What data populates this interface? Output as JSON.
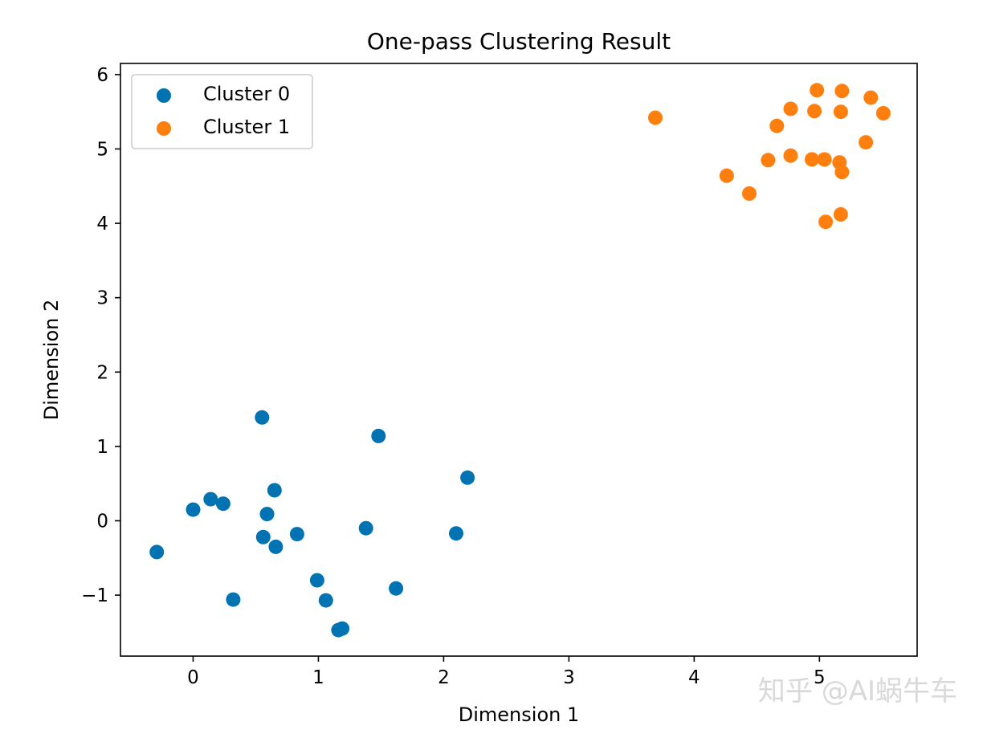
{
  "chart_data": {
    "type": "scatter",
    "title": "One-pass Clustering Result",
    "xlabel": "Dimension 1",
    "ylabel": "Dimension 2",
    "xlim": [
      -0.58,
      5.78
    ],
    "ylim": [
      -1.82,
      6.15
    ],
    "xticks": [
      0,
      1,
      2,
      3,
      4,
      5
    ],
    "yticks": [
      -1,
      0,
      1,
      2,
      3,
      4,
      5,
      6
    ],
    "xtick_labels": [
      "0",
      "1",
      "2",
      "3",
      "4",
      "5"
    ],
    "ytick_labels": [
      "−1",
      "0",
      "1",
      "2",
      "3",
      "4",
      "5",
      "6"
    ],
    "grid": false,
    "legend_position": "upper-left",
    "series": [
      {
        "name": "Cluster 0",
        "color": "#0173b2",
        "points": [
          [
            0.55,
            1.39
          ],
          [
            1.48,
            1.14
          ],
          [
            2.19,
            0.58
          ],
          [
            0.65,
            0.41
          ],
          [
            0.0,
            0.15
          ],
          [
            0.14,
            0.29
          ],
          [
            0.24,
            0.23
          ],
          [
            0.59,
            0.09
          ],
          [
            0.56,
            -0.22
          ],
          [
            0.66,
            -0.35
          ],
          [
            0.83,
            -0.18
          ],
          [
            1.38,
            -0.1
          ],
          [
            2.1,
            -0.17
          ],
          [
            -0.29,
            -0.42
          ],
          [
            0.32,
            -1.06
          ],
          [
            0.99,
            -0.8
          ],
          [
            1.06,
            -1.07
          ],
          [
            1.62,
            -0.91
          ],
          [
            1.16,
            -1.47
          ],
          [
            1.19,
            -1.45
          ]
        ]
      },
      {
        "name": "Cluster 1",
        "color": "#ff7f0e",
        "points": [
          [
            3.69,
            5.42
          ],
          [
            4.98,
            5.79
          ],
          [
            5.18,
            5.78
          ],
          [
            5.41,
            5.69
          ],
          [
            4.77,
            5.54
          ],
          [
            4.96,
            5.51
          ],
          [
            5.17,
            5.5
          ],
          [
            5.51,
            5.48
          ],
          [
            4.66,
            5.31
          ],
          [
            5.37,
            5.09
          ],
          [
            4.77,
            4.91
          ],
          [
            4.59,
            4.85
          ],
          [
            4.94,
            4.86
          ],
          [
            5.04,
            4.86
          ],
          [
            5.16,
            4.82
          ],
          [
            5.18,
            4.69
          ],
          [
            4.26,
            4.64
          ],
          [
            4.44,
            4.4
          ],
          [
            5.17,
            4.12
          ],
          [
            5.05,
            4.02
          ]
        ]
      }
    ]
  },
  "watermark": {
    "text": "知乎 @AI蜗牛车"
  }
}
